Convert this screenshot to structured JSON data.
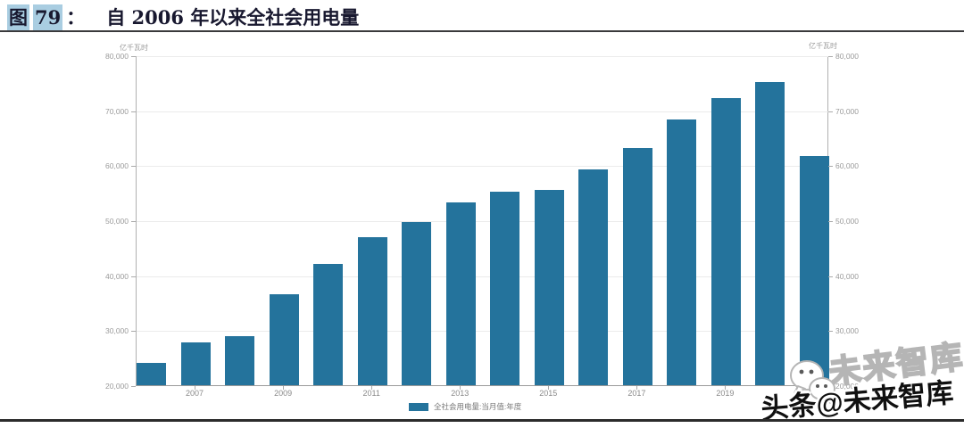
{
  "header": {
    "figure_label": "图",
    "figure_number": "79",
    "separator": "：",
    "title": "自 2006 年以来全社会用电量"
  },
  "chart": {
    "left_axis_title": "亿千瓦时",
    "right_axis_title": "亿千瓦时",
    "legend_label": "全社会用电量:当月值:年度"
  },
  "chart_data": {
    "type": "bar",
    "title": "自2006年以来全社会用电量",
    "categories": [
      "2006",
      "2007",
      "2008",
      "2009",
      "2010",
      "2011",
      "2012",
      "2013",
      "2014",
      "2015",
      "2016",
      "2017",
      "2018",
      "2019",
      "2020",
      "2021"
    ],
    "values": [
      24000,
      27800,
      29000,
      36500,
      42000,
      47000,
      49700,
      53200,
      55200,
      55500,
      59200,
      63100,
      68400,
      72200,
      75200,
      61700
    ],
    "x_tick_labels": [
      "2007",
      "2009",
      "2011",
      "2013",
      "2015",
      "2017",
      "2019"
    ],
    "x_tick_bar_indices": [
      1,
      3,
      5,
      7,
      9,
      11,
      13
    ],
    "xlabel": "",
    "ylabel": "亿千瓦时",
    "ylim": [
      20000,
      80000
    ],
    "y_ticks": [
      20000,
      30000,
      40000,
      50000,
      60000,
      70000,
      80000
    ],
    "y_tick_labels": [
      "20,000",
      "30,000",
      "40,000",
      "50,000",
      "60,000",
      "70,000",
      "80,000"
    ],
    "legend": [
      "全社会用电量:当月值:年度"
    ],
    "legend_position": "bottom",
    "grid": true,
    "bar_color": "#24739c",
    "dual_y_axis": true
  },
  "watermark": {
    "outlined_text": "未来智库",
    "black_text": "头条@未来智库",
    "icon": "wechat-icon"
  },
  "colors": {
    "bar": "#24739c",
    "highlight": "#a9cde1",
    "title_text": "#18182f",
    "grid": "#ebebeb",
    "axis": "#b0b0b0",
    "tick_text": "#9a9a9a",
    "rule": "#3a3a3c"
  }
}
